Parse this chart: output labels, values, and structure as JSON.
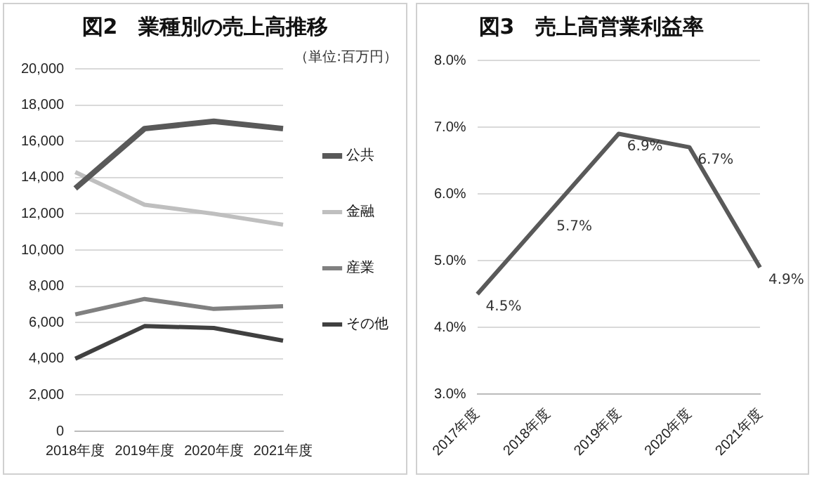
{
  "chart_data": [
    {
      "type": "line",
      "title": "図2　業種別の売上高推移",
      "annotations": [
        "（単位:百万円）"
      ],
      "categories": [
        "2018年度",
        "2019年度",
        "2020年度",
        "2021年度"
      ],
      "series": [
        {
          "name": "公共",
          "color": "#595959",
          "values": [
            13400,
            16700,
            17100,
            16700
          ]
        },
        {
          "name": "金融",
          "color": "#bfbfbf",
          "values": [
            14300,
            12500,
            12000,
            11400
          ]
        },
        {
          "name": "産業",
          "color": "#808080",
          "values": [
            6450,
            7300,
            6750,
            6900
          ]
        },
        {
          "name": "その他",
          "color": "#404040",
          "values": [
            4000,
            5800,
            5700,
            5000
          ]
        }
      ],
      "ylim": [
        0,
        20000
      ],
      "yticks": [
        {
          "value": 0,
          "label": "0"
        },
        {
          "value": 2000,
          "label": "2,000"
        },
        {
          "value": 4000,
          "label": "4,000"
        },
        {
          "value": 6000,
          "label": "6,000"
        },
        {
          "value": 8000,
          "label": "8,000"
        },
        {
          "value": 10000,
          "label": "10,000"
        },
        {
          "value": 12000,
          "label": "12,000"
        },
        {
          "value": 14000,
          "label": "14,000"
        },
        {
          "value": 16000,
          "label": "16,000"
        },
        {
          "value": 18000,
          "label": "18,000"
        },
        {
          "value": 20000,
          "label": "20,000"
        }
      ],
      "grid": "y",
      "legend": "right",
      "marker": "none"
    },
    {
      "type": "line",
      "title": "図3　売上高営業利益率",
      "categories": [
        "2017年度",
        "2018年度",
        "2019年度",
        "2020年度",
        "2021年度"
      ],
      "series": [
        {
          "color": "#595959",
          "values": [
            4.5,
            5.7,
            6.9,
            6.7,
            4.9
          ],
          "value_labels": [
            "4.5%",
            "5.7%",
            "6.9%",
            "6.7%",
            "4.9%"
          ]
        }
      ],
      "ylim": [
        3,
        8
      ],
      "yticks": [
        {
          "value": 3,
          "label": "3.0%"
        },
        {
          "value": 4,
          "label": "4.0%"
        },
        {
          "value": 5,
          "label": "5.0%"
        },
        {
          "value": 6,
          "label": "6.0%"
        },
        {
          "value": 7,
          "label": "7.0%"
        },
        {
          "value": 8,
          "label": "8.0%"
        }
      ],
      "grid": "y",
      "marker": "none"
    }
  ]
}
